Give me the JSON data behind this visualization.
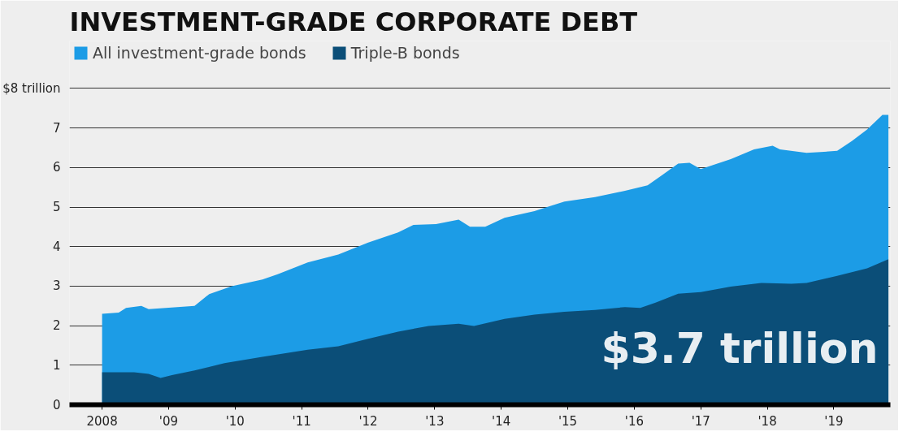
{
  "chart_data": {
    "type": "area",
    "title": "INVESTMENT-GRADE CORPORATE DEBT",
    "series": [
      {
        "name": "All investment-grade bonds",
        "color": "#1c9ce6",
        "x": [
          2008.0,
          2008.25,
          2008.36,
          2008.59,
          2008.7,
          2009.39,
          2009.61,
          2009.95,
          2010.41,
          2010.64,
          2011.09,
          2011.55,
          2012.0,
          2012.45,
          2012.68,
          2013.02,
          2013.36,
          2013.53,
          2013.76,
          2014.05,
          2014.5,
          2014.95,
          2015.41,
          2015.86,
          2016.2,
          2016.43,
          2016.66,
          2016.83,
          2017.0,
          2017.45,
          2017.8,
          2018.08,
          2018.19,
          2018.59,
          2019.05,
          2019.27,
          2019.5,
          2019.73,
          2019.82
        ],
        "values": [
          2.3,
          2.33,
          2.45,
          2.5,
          2.42,
          2.5,
          2.8,
          3.0,
          3.17,
          3.3,
          3.6,
          3.8,
          4.1,
          4.36,
          4.55,
          4.57,
          4.68,
          4.5,
          4.5,
          4.73,
          4.9,
          5.14,
          5.25,
          5.41,
          5.55,
          5.82,
          6.1,
          6.12,
          5.96,
          6.21,
          6.46,
          6.55,
          6.46,
          6.37,
          6.42,
          6.67,
          6.96,
          7.33,
          7.33
        ]
      },
      {
        "name": "Triple-B bonds",
        "color": "#0b4e78",
        "x": [
          2008.0,
          2008.48,
          2008.7,
          2008.88,
          2009.05,
          2009.39,
          2009.84,
          2010.41,
          2011.09,
          2011.55,
          2012.0,
          2012.45,
          2012.91,
          2013.36,
          2013.59,
          2014.05,
          2014.5,
          2014.95,
          2015.41,
          2015.86,
          2016.09,
          2016.32,
          2016.66,
          2017.0,
          2017.45,
          2017.91,
          2018.36,
          2018.59,
          2019.05,
          2019.5,
          2019.82
        ],
        "values": [
          0.82,
          0.82,
          0.78,
          0.68,
          0.75,
          0.87,
          1.05,
          1.21,
          1.39,
          1.48,
          1.67,
          1.85,
          1.99,
          2.05,
          1.99,
          2.17,
          2.28,
          2.35,
          2.4,
          2.47,
          2.45,
          2.58,
          2.81,
          2.85,
          2.99,
          3.08,
          3.06,
          3.08,
          3.26,
          3.45,
          3.68
        ]
      }
    ],
    "xlim": [
      2007.51,
      2019.85
    ],
    "xticks": [
      {
        "value": 2008,
        "label": "2008"
      },
      {
        "value": 2009,
        "label": "'09"
      },
      {
        "value": 2010,
        "label": "'10"
      },
      {
        "value": 2011,
        "label": "'11"
      },
      {
        "value": 2012,
        "label": "'12"
      },
      {
        "value": 2013,
        "label": "'13"
      },
      {
        "value": 2014,
        "label": "'14"
      },
      {
        "value": 2015,
        "label": "'15"
      },
      {
        "value": 2016,
        "label": "'16"
      },
      {
        "value": 2017,
        "label": "'17"
      },
      {
        "value": 2018,
        "label": "'18"
      },
      {
        "value": 2019,
        "label": "'19"
      }
    ],
    "ylim": [
      0,
      9.2
    ],
    "yticks": [
      0,
      1,
      2,
      3,
      4,
      5,
      6,
      7,
      {
        "value": 8,
        "label": "$8 trillion"
      }
    ],
    "grid": "y",
    "legend": "top left",
    "annotations": [
      "$3.7 trillion"
    ]
  }
}
